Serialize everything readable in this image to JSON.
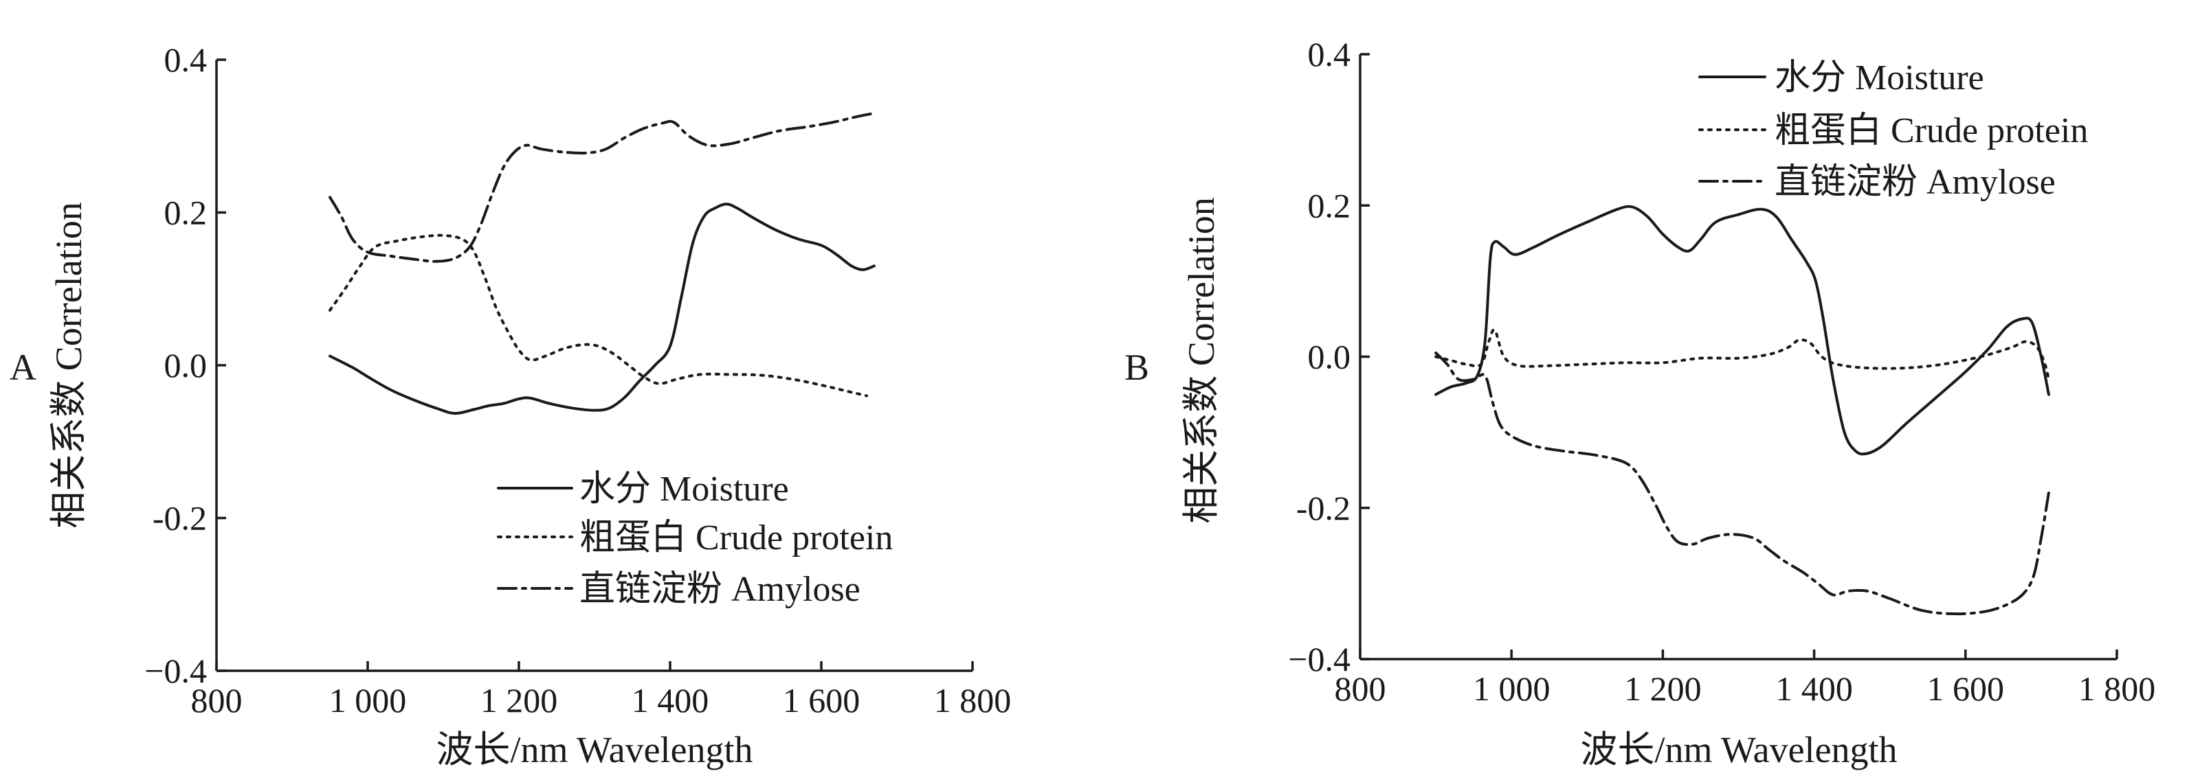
{
  "chart_data": [
    {
      "panel_label": "A",
      "type": "line",
      "xlabel": "波长/nm Wavelength",
      "ylabel": "相关系数 Correlation",
      "xlim": [
        800,
        1800
      ],
      "ylim": [
        -0.4,
        0.4
      ],
      "grid": false,
      "legend_position": "bottom-center",
      "line_color": "#1a1a1a",
      "x_ticks": [
        {
          "value": 800,
          "label": "800"
        },
        {
          "value": 1000,
          "label": "1 000"
        },
        {
          "value": 1200,
          "label": "1 200"
        },
        {
          "value": 1400,
          "label": "1 400"
        },
        {
          "value": 1600,
          "label": "1 600"
        },
        {
          "value": 1800,
          "label": "1 800"
        }
      ],
      "y_ticks": [
        {
          "value": 0.4,
          "label": "0.4"
        },
        {
          "value": 0.2,
          "label": "0.2"
        },
        {
          "value": 0.0,
          "label": "0.0"
        },
        {
          "value": -0.2,
          "label": "-0.2"
        },
        {
          "value": -0.4,
          "label": "−0.4"
        }
      ],
      "series": [
        {
          "name": "水分 Moisture",
          "line_style": "solid",
          "x": [
            950,
            980,
            1000,
            1030,
            1060,
            1090,
            1115,
            1140,
            1160,
            1180,
            1200,
            1215,
            1240,
            1270,
            1300,
            1320,
            1340,
            1360,
            1380,
            1400,
            1415,
            1430,
            1445,
            1460,
            1475,
            1490,
            1510,
            1540,
            1570,
            1600,
            1620,
            1640,
            1655,
            1670
          ],
          "y": [
            0.012,
            -0.003,
            -0.015,
            -0.032,
            -0.045,
            -0.056,
            -0.063,
            -0.058,
            -0.053,
            -0.05,
            -0.044,
            -0.043,
            -0.05,
            -0.056,
            -0.059,
            -0.056,
            -0.042,
            -0.02,
            0.0,
            0.025,
            0.09,
            0.16,
            0.195,
            0.206,
            0.211,
            0.205,
            0.193,
            0.177,
            0.165,
            0.157,
            0.145,
            0.13,
            0.125,
            0.13
          ]
        },
        {
          "name": "粗蛋白 Crude protein",
          "line_style": "dotted",
          "x": [
            950,
            970,
            990,
            1010,
            1040,
            1070,
            1100,
            1125,
            1140,
            1155,
            1170,
            1185,
            1200,
            1215,
            1235,
            1260,
            1285,
            1305,
            1325,
            1345,
            1365,
            1385,
            1410,
            1440,
            1480,
            1520,
            1560,
            1600,
            1630,
            1660
          ],
          "y": [
            0.072,
            0.1,
            0.13,
            0.155,
            0.163,
            0.168,
            0.17,
            0.165,
            0.15,
            0.115,
            0.075,
            0.045,
            0.02,
            0.007,
            0.012,
            0.022,
            0.027,
            0.025,
            0.015,
            0.0,
            -0.015,
            -0.024,
            -0.018,
            -0.012,
            -0.012,
            -0.013,
            -0.018,
            -0.026,
            -0.033,
            -0.04
          ]
        },
        {
          "name": "直链淀粉 Amylose",
          "line_style": "dashdot",
          "x": [
            950,
            965,
            980,
            1000,
            1030,
            1060,
            1090,
            1115,
            1135,
            1150,
            1165,
            1180,
            1195,
            1210,
            1230,
            1260,
            1290,
            1315,
            1340,
            1365,
            1390,
            1405,
            1425,
            1450,
            1480,
            1510,
            1545,
            1580,
            1615,
            1645,
            1670
          ],
          "y": [
            0.22,
            0.195,
            0.165,
            0.148,
            0.143,
            0.139,
            0.136,
            0.14,
            0.155,
            0.185,
            0.225,
            0.26,
            0.28,
            0.288,
            0.283,
            0.279,
            0.278,
            0.283,
            0.298,
            0.31,
            0.317,
            0.318,
            0.3,
            0.288,
            0.29,
            0.298,
            0.307,
            0.312,
            0.318,
            0.325,
            0.33
          ]
        }
      ]
    },
    {
      "panel_label": "B",
      "type": "line",
      "xlabel": "波长/nm Wavelength",
      "ylabel": "相关系数 Correlation",
      "xlim": [
        800,
        1800
      ],
      "ylim": [
        -0.4,
        0.4
      ],
      "grid": false,
      "legend_position": "top-right",
      "line_color": "#1a1a1a",
      "x_ticks": [
        {
          "value": 800,
          "label": "800"
        },
        {
          "value": 1000,
          "label": "1 000"
        },
        {
          "value": 1200,
          "label": "1 200"
        },
        {
          "value": 1400,
          "label": "1 400"
        },
        {
          "value": 1600,
          "label": "1 600"
        },
        {
          "value": 1800,
          "label": "1 800"
        }
      ],
      "y_ticks": [
        {
          "value": 0.4,
          "label": "0.4"
        },
        {
          "value": 0.2,
          "label": "0.2"
        },
        {
          "value": 0.0,
          "label": "0.0"
        },
        {
          "value": -0.2,
          "label": "-0.2"
        },
        {
          "value": -0.4,
          "label": "−0.4"
        }
      ],
      "series": [
        {
          "name": "水分 Moisture",
          "line_style": "solid",
          "x": [
            900,
            920,
            940,
            955,
            965,
            972,
            978,
            990,
            1005,
            1030,
            1060,
            1100,
            1140,
            1160,
            1180,
            1200,
            1220,
            1235,
            1250,
            1270,
            1300,
            1330,
            1350,
            1370,
            1390,
            1402,
            1412,
            1425,
            1440,
            1455,
            1470,
            1490,
            1520,
            1560,
            1600,
            1630,
            1655,
            1675,
            1688,
            1700,
            1710
          ],
          "y": [
            -0.05,
            -0.04,
            -0.035,
            -0.025,
            0.02,
            0.13,
            0.152,
            0.145,
            0.135,
            0.145,
            0.16,
            0.178,
            0.195,
            0.198,
            0.185,
            0.162,
            0.145,
            0.14,
            0.155,
            0.178,
            0.188,
            0.195,
            0.185,
            0.155,
            0.125,
            0.1,
            0.05,
            -0.03,
            -0.1,
            -0.125,
            -0.128,
            -0.118,
            -0.09,
            -0.055,
            -0.02,
            0.01,
            0.04,
            0.05,
            0.045,
            0.0,
            -0.05
          ]
        },
        {
          "name": "粗蛋白 Crude protein",
          "line_style": "dotted",
          "x": [
            900,
            920,
            940,
            960,
            970,
            978,
            990,
            1010,
            1050,
            1100,
            1150,
            1200,
            1250,
            1300,
            1340,
            1365,
            1380,
            1395,
            1410,
            1430,
            1470,
            1520,
            1570,
            1620,
            1660,
            1680,
            1695,
            1705,
            1710
          ],
          "y": [
            0.0,
            -0.005,
            -0.01,
            -0.01,
            0.02,
            0.035,
            0.0,
            -0.012,
            -0.012,
            -0.01,
            -0.008,
            -0.008,
            -0.002,
            -0.002,
            0.003,
            0.012,
            0.022,
            0.018,
            0.0,
            -0.01,
            -0.015,
            -0.015,
            -0.01,
            0.0,
            0.012,
            0.02,
            0.012,
            -0.01,
            -0.03
          ]
        },
        {
          "name": "直链淀粉 Amylose",
          "line_style": "dashdot",
          "x": [
            900,
            915,
            930,
            950,
            965,
            975,
            985,
            1000,
            1030,
            1070,
            1110,
            1150,
            1170,
            1190,
            1205,
            1220,
            1240,
            1260,
            1290,
            1320,
            1340,
            1360,
            1385,
            1405,
            1425,
            1445,
            1470,
            1500,
            1540,
            1580,
            1620,
            1650,
            1675,
            1690,
            1700,
            1710
          ],
          "y": [
            0.005,
            -0.01,
            -0.03,
            -0.03,
            -0.025,
            -0.06,
            -0.09,
            -0.105,
            -0.118,
            -0.125,
            -0.13,
            -0.14,
            -0.16,
            -0.195,
            -0.225,
            -0.245,
            -0.248,
            -0.24,
            -0.235,
            -0.24,
            -0.255,
            -0.27,
            -0.285,
            -0.3,
            -0.315,
            -0.31,
            -0.31,
            -0.32,
            -0.335,
            -0.34,
            -0.338,
            -0.33,
            -0.315,
            -0.29,
            -0.24,
            -0.18
          ]
        }
      ]
    }
  ]
}
